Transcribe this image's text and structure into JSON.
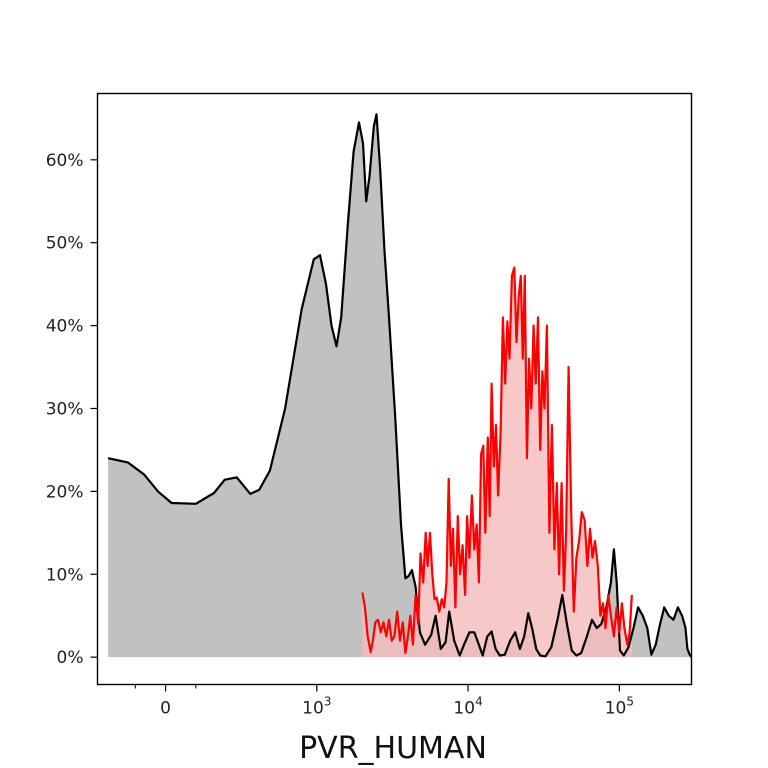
{
  "chart_data": {
    "type": "area",
    "xlabel": "PVR_HUMAN",
    "ylabel": "",
    "x_scale": "symlog",
    "y_ticks": [
      {
        "value": 0,
        "label": "0%"
      },
      {
        "value": 10,
        "label": "10%"
      },
      {
        "value": 20,
        "label": "20%"
      },
      {
        "value": 30,
        "label": "30%"
      },
      {
        "value": 40,
        "label": "40%"
      },
      {
        "value": 50,
        "label": "50%"
      },
      {
        "value": 60,
        "label": "60%"
      }
    ],
    "x_ticks": [
      {
        "value": 0,
        "base": "0",
        "exp": ""
      },
      {
        "value": 1000,
        "base": "10",
        "exp": "3"
      },
      {
        "value": 10000,
        "base": "10",
        "exp": "4"
      },
      {
        "value": 100000,
        "base": "10",
        "exp": "5"
      }
    ],
    "x_minor_ticks": [
      -200,
      200
    ],
    "xlim": [
      -450,
      300000
    ],
    "ylim": [
      -3.3,
      68
    ],
    "grid": false,
    "series": [
      {
        "color": "#000000",
        "fill": "#b3b3b3",
        "points": [
          [
            -380,
            24.0
          ],
          [
            -250,
            23.5
          ],
          [
            -140,
            22.0
          ],
          [
            -50,
            20.0
          ],
          [
            40,
            18.6
          ],
          [
            200,
            18.5
          ],
          [
            320,
            19.8
          ],
          [
            390,
            21.4
          ],
          [
            470,
            21.7
          ],
          [
            560,
            19.7
          ],
          [
            620,
            20.2
          ],
          [
            690,
            22.5
          ],
          [
            790,
            30.0
          ],
          [
            900,
            42.0
          ],
          [
            980,
            48.0
          ],
          [
            1050,
            48.5
          ],
          [
            1150,
            45.0
          ],
          [
            1250,
            40.0
          ],
          [
            1350,
            37.5
          ],
          [
            1450,
            41.0
          ],
          [
            1600,
            52.0
          ],
          [
            1750,
            61.0
          ],
          [
            1900,
            64.5
          ],
          [
            2020,
            62.0
          ],
          [
            2120,
            55.0
          ],
          [
            2230,
            58.0
          ],
          [
            2380,
            64.0
          ],
          [
            2480,
            65.5
          ],
          [
            2620,
            59.0
          ],
          [
            2800,
            49.0
          ],
          [
            3000,
            41.0
          ],
          [
            3300,
            29.0
          ],
          [
            3600,
            16.0
          ],
          [
            3850,
            9.5
          ],
          [
            4050,
            9.8
          ],
          [
            4250,
            10.5
          ],
          [
            4500,
            8.5
          ],
          [
            4800,
            3.0
          ],
          [
            5200,
            1.5
          ],
          [
            5700,
            2.7
          ],
          [
            6100,
            5.0
          ],
          [
            6600,
            1.0
          ],
          [
            7100,
            1.8
          ],
          [
            7500,
            5.5
          ],
          [
            8100,
            2.0
          ],
          [
            8800,
            0.2
          ],
          [
            9400,
            1.5
          ],
          [
            10200,
            3.0
          ],
          [
            11000,
            3.0
          ],
          [
            11800,
            1.5
          ],
          [
            12500,
            0.2
          ],
          [
            13400,
            2.5
          ],
          [
            14300,
            3.1
          ],
          [
            15200,
            1.0
          ],
          [
            16200,
            0.2
          ],
          [
            17500,
            0.3
          ],
          [
            19000,
            2.0
          ],
          [
            20500,
            3.0
          ],
          [
            22000,
            1.0
          ],
          [
            23500,
            2.5
          ],
          [
            25000,
            5.3
          ],
          [
            26500,
            3.5
          ],
          [
            28200,
            1.0
          ],
          [
            30000,
            0.2
          ],
          [
            32500,
            0.1
          ],
          [
            35500,
            1.2
          ],
          [
            39000,
            4.5
          ],
          [
            42000,
            7.5
          ],
          [
            45000,
            4.0
          ],
          [
            48500,
            0.8
          ],
          [
            52000,
            0.2
          ],
          [
            56000,
            0.5
          ],
          [
            61000,
            2.5
          ],
          [
            66000,
            4.5
          ],
          [
            71000,
            3.5
          ],
          [
            76000,
            4.0
          ],
          [
            82000,
            6.0
          ],
          [
            88000,
            9.0
          ],
          [
            92000,
            13.0
          ],
          [
            96000,
            9.0
          ],
          [
            101000,
            0.8
          ],
          [
            107000,
            0.2
          ],
          [
            115000,
            1.2
          ],
          [
            124000,
            3.5
          ],
          [
            133000,
            6.0
          ],
          [
            143000,
            5.0
          ],
          [
            153000,
            3.5
          ],
          [
            163000,
            0.3
          ],
          [
            174000,
            1.5
          ],
          [
            186000,
            4.0
          ],
          [
            198000,
            6.0
          ],
          [
            212000,
            5.0
          ],
          [
            228000,
            4.5
          ],
          [
            244000,
            6.0
          ],
          [
            260000,
            5.0
          ],
          [
            274000,
            3.5
          ],
          [
            282000,
            1.0
          ],
          [
            292000,
            0.3
          ],
          [
            300000,
            0.0
          ]
        ]
      },
      {
        "color": "#ff0000",
        "fill": "#f5bcbc",
        "points": [
          [
            2000,
            7.8
          ],
          [
            2080,
            6.0
          ],
          [
            2170,
            2.5
          ],
          [
            2270,
            0.6
          ],
          [
            2350,
            2.0
          ],
          [
            2440,
            4.2
          ],
          [
            2540,
            4.5
          ],
          [
            2650,
            3.0
          ],
          [
            2760,
            4.2
          ],
          [
            2880,
            2.5
          ],
          [
            3000,
            4.5
          ],
          [
            3130,
            2.0
          ],
          [
            3260,
            2.5
          ],
          [
            3400,
            5.5
          ],
          [
            3550,
            2.0
          ],
          [
            3700,
            4.2
          ],
          [
            3850,
            0.5
          ],
          [
            4000,
            2.5
          ],
          [
            4150,
            5.0
          ],
          [
            4320,
            1.5
          ],
          [
            4500,
            7.5
          ],
          [
            4680,
            4.0
          ],
          [
            4850,
            12.5
          ],
          [
            5050,
            9.0
          ],
          [
            5250,
            15.0
          ],
          [
            5400,
            11.0
          ],
          [
            5600,
            15.0
          ],
          [
            5800,
            10.0
          ],
          [
            6000,
            7.0
          ],
          [
            6200,
            7.2
          ],
          [
            6450,
            5.5
          ],
          [
            6700,
            7.0
          ],
          [
            6950,
            6.0
          ],
          [
            7200,
            9.0
          ],
          [
            7450,
            21.5
          ],
          [
            7700,
            11.0
          ],
          [
            7950,
            15.5
          ],
          [
            8250,
            6.0
          ],
          [
            8550,
            17.0
          ],
          [
            8850,
            10.0
          ],
          [
            9200,
            13.5
          ],
          [
            9550,
            7.5
          ],
          [
            9850,
            17.0
          ],
          [
            10200,
            12.0
          ],
          [
            10600,
            19.5
          ],
          [
            11000,
            13.0
          ],
          [
            11400,
            16.0
          ],
          [
            11800,
            9.0
          ],
          [
            12200,
            24.5
          ],
          [
            12600,
            25.5
          ],
          [
            13000,
            15.0
          ],
          [
            13500,
            26.5
          ],
          [
            13900,
            17.0
          ],
          [
            14300,
            33.0
          ],
          [
            14800,
            23.0
          ],
          [
            15300,
            28.0
          ],
          [
            15800,
            19.5
          ],
          [
            16400,
            27.0
          ],
          [
            17000,
            41.0
          ],
          [
            17600,
            33.0
          ],
          [
            18200,
            40.5
          ],
          [
            18800,
            36.0
          ],
          [
            19500,
            46.0
          ],
          [
            20200,
            47.0
          ],
          [
            20900,
            38.0
          ],
          [
            21600,
            43.5
          ],
          [
            22300,
            46.0
          ],
          [
            23000,
            36.0
          ],
          [
            23700,
            46.0
          ],
          [
            24500,
            24.0
          ],
          [
            25300,
            36.0
          ],
          [
            26200,
            30.0
          ],
          [
            27100,
            40.0
          ],
          [
            28000,
            33.0
          ],
          [
            29000,
            41.0
          ],
          [
            30000,
            25.0
          ],
          [
            31000,
            34.5
          ],
          [
            32000,
            30.0
          ],
          [
            33200,
            40.0
          ],
          [
            34500,
            15.0
          ],
          [
            35800,
            28.0
          ],
          [
            37200,
            13.0
          ],
          [
            38600,
            21.0
          ],
          [
            40000,
            10.0
          ],
          [
            41500,
            21.0
          ],
          [
            43000,
            8.0
          ],
          [
            44500,
            15.0
          ],
          [
            46200,
            35.0
          ],
          [
            48000,
            18.0
          ],
          [
            50000,
            5.5
          ],
          [
            52000,
            12.0
          ],
          [
            54200,
            14.0
          ],
          [
            56500,
            17.5
          ],
          [
            59000,
            16.5
          ],
          [
            61500,
            11.0
          ],
          [
            64000,
            15.5
          ],
          [
            66500,
            12.0
          ],
          [
            69000,
            14.0
          ],
          [
            72000,
            11.0
          ],
          [
            75000,
            5.0
          ],
          [
            78000,
            6.5
          ],
          [
            81000,
            3.5
          ],
          [
            84500,
            7.5
          ],
          [
            88000,
            5.0
          ],
          [
            92000,
            2.5
          ],
          [
            96000,
            6.0
          ],
          [
            100000,
            3.0
          ],
          [
            104000,
            6.5
          ],
          [
            108000,
            3.5
          ],
          [
            113000,
            1.5
          ],
          [
            117000,
            3.0
          ],
          [
            121000,
            7.5
          ]
        ]
      }
    ]
  }
}
